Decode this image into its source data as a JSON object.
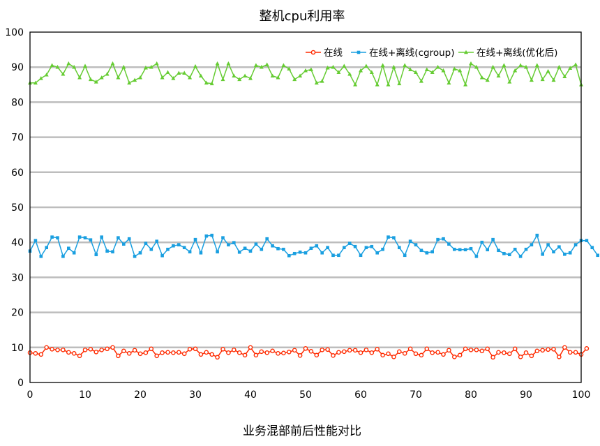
{
  "chart_data": {
    "type": "line",
    "title": "整机cpu利用率",
    "xlabel": "业务混部前后性能对比",
    "ylabel": "",
    "xlim": [
      0,
      100
    ],
    "ylim": [
      0,
      100
    ],
    "xticks": [
      0,
      10,
      20,
      30,
      40,
      50,
      60,
      70,
      80,
      90,
      100
    ],
    "yticks": [
      0,
      10,
      20,
      30,
      40,
      50,
      60,
      70,
      80,
      90,
      100
    ],
    "grid": "horizontal",
    "legend_position": "top-right",
    "series": [
      {
        "name": "在线",
        "color": "#ff2a00",
        "marker": "circle",
        "values": [
          8.5,
          8.3,
          8.0,
          10.0,
          9.5,
          9.3,
          9.3,
          8.6,
          8.3,
          7.6,
          9.3,
          9.5,
          8.7,
          9.3,
          9.6,
          10.0,
          7.6,
          9.0,
          8.3,
          9.2,
          8.2,
          8.5,
          9.6,
          7.6,
          8.5,
          8.6,
          8.5,
          8.6,
          8.2,
          9.5,
          9.6,
          8.0,
          8.6,
          8.0,
          7.2,
          9.5,
          8.5,
          9.3,
          8.5,
          7.8,
          10.0,
          7.8,
          8.8,
          8.5,
          9.0,
          8.3,
          8.4,
          8.7,
          9.2,
          7.7,
          9.7,
          8.9,
          7.8,
          9.3,
          9.4,
          7.7,
          8.6,
          8.8,
          9.2,
          9.2,
          8.5,
          9.3,
          8.5,
          9.5,
          7.8,
          8.2,
          7.3,
          8.8,
          8.3,
          9.6,
          8.2,
          7.8,
          9.6,
          8.5,
          8.6,
          8.0,
          9.2,
          7.3,
          7.8,
          9.6,
          9.3,
          9.3,
          9.0,
          9.6,
          7.2,
          8.6,
          8.5,
          8.2,
          9.6,
          7.3,
          8.5,
          7.6,
          9.0,
          9.2,
          9.4,
          9.5,
          7.3,
          10.0,
          8.6,
          8.6,
          8.0,
          9.7
        ]
      },
      {
        "name": "在线+离线(cgroup)",
        "color": "#1a9fe0",
        "marker": "square",
        "values": [
          37.5,
          40.5,
          36.0,
          38.5,
          41.5,
          41.3,
          36.0,
          38.3,
          37.0,
          41.5,
          41.3,
          40.7,
          36.5,
          41.5,
          37.5,
          37.3,
          41.3,
          39.5,
          41.0,
          36.0,
          37.0,
          39.7,
          38.0,
          40.3,
          36.2,
          38.0,
          39.0,
          39.3,
          38.5,
          37.3,
          40.8,
          37.0,
          41.8,
          42.0,
          37.3,
          41.3,
          39.3,
          39.9,
          37.2,
          38.3,
          37.5,
          39.5,
          38.0,
          41.0,
          39.0,
          38.2,
          38.0,
          36.2,
          36.8,
          37.2,
          37.0,
          38.3,
          39.0,
          37.0,
          38.5,
          36.3,
          36.3,
          38.5,
          39.7,
          38.8,
          36.3,
          38.5,
          38.8,
          37.0,
          38.0,
          41.5,
          41.3,
          38.5,
          36.3,
          40.3,
          39.3,
          37.7,
          37.0,
          37.3,
          40.8,
          41.0,
          39.5,
          38.0,
          37.9,
          37.9,
          38.2,
          36.0,
          40.0,
          37.9,
          40.8,
          37.7,
          36.8,
          36.5,
          38.0,
          36.0,
          38.0,
          39.3,
          42.0,
          36.6,
          39.3,
          37.3,
          38.7,
          36.6,
          37.0,
          39.3,
          40.5,
          40.5,
          38.5,
          36.3
        ]
      },
      {
        "name": "在线+离线(优化后)",
        "color": "#66cc33",
        "marker": "triangle",
        "values": [
          85.5,
          85.5,
          86.8,
          87.8,
          90.5,
          90.0,
          88.0,
          91.0,
          90.0,
          87.0,
          90.3,
          86.5,
          85.8,
          87.0,
          88.0,
          91.0,
          87.0,
          90.0,
          85.5,
          86.3,
          87.0,
          89.8,
          90.0,
          91.0,
          87.0,
          88.5,
          86.8,
          88.3,
          88.3,
          87.0,
          90.2,
          87.5,
          85.5,
          85.3,
          91.0,
          86.5,
          91.0,
          87.5,
          86.5,
          87.5,
          86.8,
          90.5,
          90.0,
          90.7,
          87.5,
          87.0,
          90.5,
          89.5,
          86.5,
          87.5,
          89.0,
          89.3,
          85.5,
          86.0,
          89.8,
          90.0,
          88.5,
          90.3,
          88.0,
          85.0,
          89.0,
          90.3,
          88.5,
          85.0,
          90.5,
          85.0,
          90.0,
          85.3,
          90.5,
          89.3,
          88.5,
          86.0,
          89.3,
          88.5,
          90.0,
          89.0,
          85.5,
          89.5,
          89.0,
          85.0,
          91.0,
          90.0,
          87.0,
          86.3,
          90.0,
          87.5,
          90.5,
          85.8,
          89.0,
          90.5,
          90.0,
          86.3,
          90.5,
          86.5,
          88.8,
          86.3,
          90.0,
          87.3,
          89.7,
          90.7,
          85.0
        ]
      }
    ]
  }
}
